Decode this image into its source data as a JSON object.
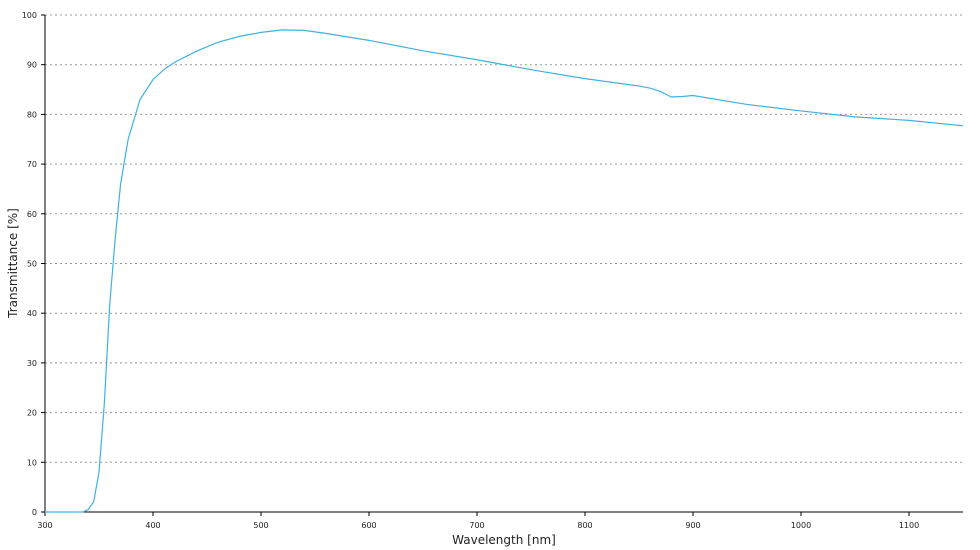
{
  "chart_data": {
    "type": "line",
    "x_label": "Wavelength [nm]",
    "y_label": "Transmittance [%]",
    "series": [
      {
        "color": "#3fb1e3",
        "x": [
          300,
          330,
          335,
          340,
          345,
          350,
          355,
          360,
          365,
          370,
          377,
          388,
          400,
          410,
          420,
          440,
          460,
          480,
          500,
          520,
          540,
          560,
          580,
          600,
          650,
          700,
          750,
          800,
          850,
          860,
          870,
          880,
          890,
          900,
          950,
          1000,
          1050,
          1100,
          1150
        ],
        "values": [
          0,
          0,
          0,
          0.5,
          2,
          8,
          22,
          42,
          55,
          66,
          75,
          83,
          87,
          89,
          90.5,
          92.7,
          94.5,
          95.7,
          96.5,
          97,
          96.9,
          96.3,
          95.6,
          94.9,
          92.8,
          91,
          89,
          87.2,
          85.7,
          85.3,
          84.6,
          83.5,
          83.6,
          83.8,
          82,
          80.7,
          79.5,
          78.8,
          77.7
        ]
      }
    ],
    "xlim": [
      300,
      1150
    ],
    "xticks": [
      300,
      400,
      500,
      600,
      700,
      800,
      900,
      1000,
      1100
    ],
    "ylim": [
      0,
      100
    ],
    "yticks": [
      0,
      10,
      20,
      30,
      40,
      50,
      60,
      70,
      80,
      90,
      100
    ],
    "grid": true
  }
}
